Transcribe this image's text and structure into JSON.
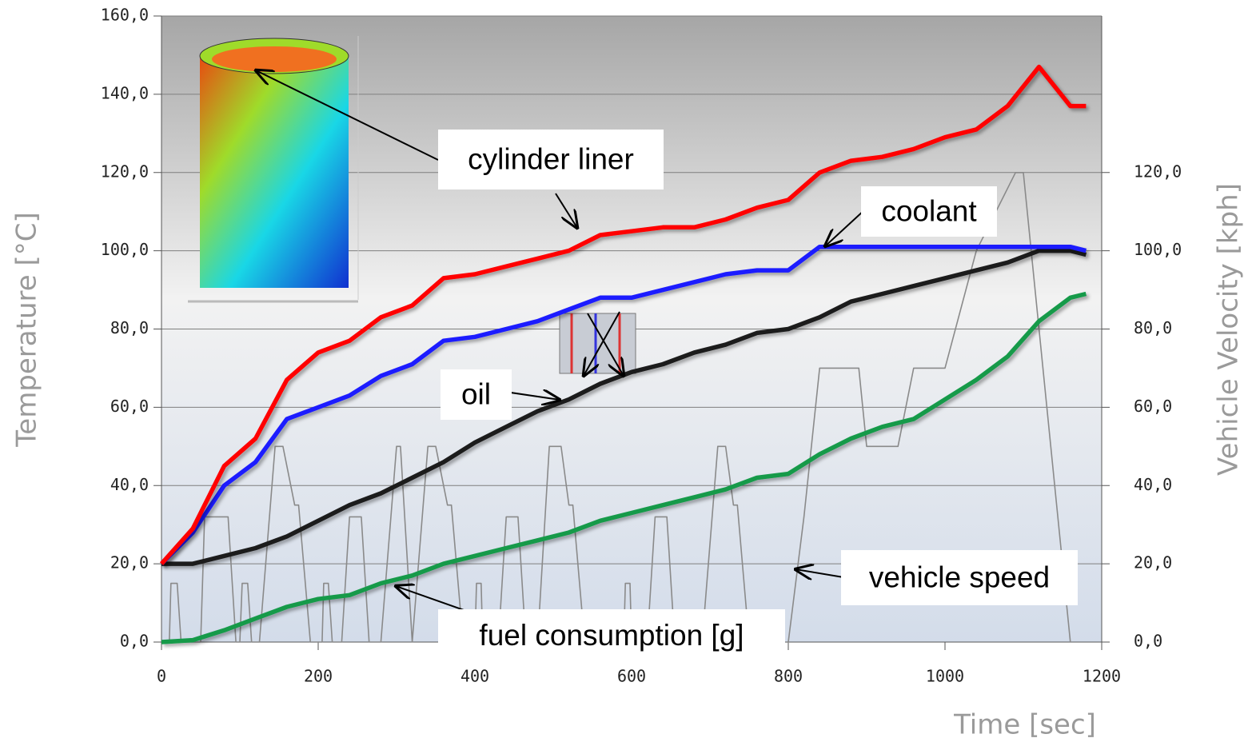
{
  "chart_data": {
    "type": "line",
    "x_label": "Time [sec]",
    "y_label": "Temperature [°C]",
    "y2_label": "Vehicle Velocity [kph]",
    "x": [
      0,
      40,
      80,
      120,
      160,
      200,
      240,
      280,
      320,
      360,
      400,
      440,
      480,
      520,
      560,
      600,
      640,
      680,
      720,
      760,
      800,
      840,
      880,
      920,
      960,
      1000,
      1040,
      1080,
      1120,
      1160,
      1180
    ],
    "series": [
      {
        "name": "cylinder liner",
        "color": "#ff0000",
        "values": [
          20,
          29,
          45,
          52,
          67,
          74,
          77,
          83,
          86,
          93,
          94,
          96,
          98,
          100,
          104,
          105,
          106,
          106,
          108,
          111,
          113,
          120,
          123,
          124,
          126,
          129,
          131,
          137,
          147,
          137,
          137
        ]
      },
      {
        "name": "coolant",
        "color": "#1f1fff",
        "values": [
          20,
          28,
          40,
          46,
          57,
          60,
          63,
          68,
          71,
          77,
          78,
          80,
          82,
          85,
          88,
          88,
          90,
          92,
          94,
          95,
          95,
          101,
          101,
          101,
          101,
          101,
          101,
          101,
          101,
          101,
          100
        ]
      },
      {
        "name": "oil",
        "color": "#1a1a1a",
        "values": [
          20,
          20,
          22,
          24,
          27,
          31,
          35,
          38,
          42,
          46,
          51,
          55,
          59,
          62,
          66,
          69,
          71,
          74,
          76,
          79,
          80,
          83,
          87,
          89,
          91,
          93,
          95,
          97,
          100,
          100,
          99
        ]
      },
      {
        "name": "fuel consumption [g]",
        "color": "#129a4a",
        "values": [
          0,
          0.5,
          3,
          6,
          9,
          11,
          12,
          15,
          17,
          20,
          22,
          24,
          26,
          28,
          31,
          33,
          35,
          37,
          39,
          42,
          43,
          48,
          52,
          55,
          57,
          62,
          67,
          73,
          82,
          88,
          89
        ]
      },
      {
        "name": "vehicle speed",
        "color": "#8a8a8a",
        "axis": "y2",
        "x": [
          0,
          10,
          12,
          20,
          25,
          50,
          55,
          85,
          95,
          100,
          103,
          110,
          115,
          125,
          145,
          155,
          170,
          175,
          190,
          205,
          207,
          213,
          218,
          230,
          240,
          255,
          265,
          280,
          300,
          305,
          320,
          340,
          350,
          365,
          370,
          385,
          400,
          402,
          408,
          410,
          430,
          440,
          455,
          465,
          480,
          495,
          510,
          520,
          525,
          540,
          590,
          592,
          598,
          600,
          620,
          630,
          645,
          655,
          690,
          710,
          720,
          730,
          735,
          750,
          800,
          820,
          840,
          890,
          900,
          940,
          960,
          1000,
          1040,
          1090,
          1100,
          1160
        ],
        "values": [
          0,
          0,
          15,
          15,
          0,
          0,
          32,
          32,
          0,
          0,
          15,
          15,
          0,
          0,
          50,
          50,
          35,
          35,
          0,
          0,
          15,
          15,
          0,
          0,
          32,
          32,
          0,
          0,
          50,
          50,
          0,
          50,
          50,
          35,
          35,
          0,
          0,
          15,
          15,
          0,
          0,
          32,
          32,
          0,
          0,
          50,
          50,
          35,
          35,
          0,
          0,
          15,
          15,
          0,
          0,
          32,
          32,
          0,
          0,
          50,
          50,
          35,
          35,
          0,
          0,
          32,
          70,
          70,
          50,
          50,
          70,
          70,
          100,
          120,
          120,
          0
        ]
      }
    ],
    "xlim": [
      0,
      1200
    ],
    "xticks": [
      0,
      200,
      400,
      600,
      800,
      1000,
      1200
    ],
    "ylim": [
      0,
      160
    ],
    "yticks": [
      {
        "value": 0,
        "label": "0,0"
      },
      {
        "value": 20,
        "label": "20,0"
      },
      {
        "value": 40,
        "label": "40,0"
      },
      {
        "value": 60,
        "label": "60,0"
      },
      {
        "value": 80,
        "label": "80,0"
      },
      {
        "value": 100,
        "label": "100,0"
      },
      {
        "value": 120,
        "label": "120,0"
      },
      {
        "value": 140,
        "label": "140,0"
      },
      {
        "value": 160,
        "label": "160,0"
      }
    ],
    "y2lim": [
      0,
      160
    ],
    "y2ticks": [
      {
        "value": 0,
        "label": "0,0"
      },
      {
        "value": 20,
        "label": "20,0"
      },
      {
        "value": 40,
        "label": "40,0"
      },
      {
        "value": 60,
        "label": "60,0"
      },
      {
        "value": 80,
        "label": "80,0"
      },
      {
        "value": 100,
        "label": "100,0"
      },
      {
        "value": 120,
        "label": "120,0"
      }
    ],
    "grid": true
  }
}
